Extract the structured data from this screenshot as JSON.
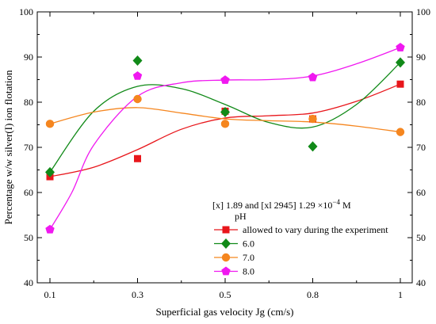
{
  "chart_data": {
    "type": "scatter",
    "xlabel": "Superficial gas velocity Jg (cm/s)",
    "ylabel": "Percentage w/w silver(I) ion flotation",
    "categories": [
      "0.1",
      "0.3",
      "0.5",
      "0.8",
      "1"
    ],
    "ylim": [
      40,
      100
    ],
    "yticks": [
      40,
      50,
      60,
      70,
      80,
      90,
      100
    ],
    "y_axis_mirrored_right": true,
    "grid": false,
    "legend": {
      "placement": "bottom-right",
      "line1": "[x] 1.89 and [xl 2945] 1.29 ×10",
      "line1_exp": "−4",
      "line1_unit": " M",
      "line2": "pH"
    },
    "series": [
      {
        "name": "allowed to vary during the experiment",
        "color": "#e8161b",
        "marker": "square",
        "values": [
          63.5,
          67.5,
          78.0,
          76.3,
          84.0
        ],
        "curve": [
          [
            0.0,
            63.5
          ],
          [
            0.5,
            65.6
          ],
          [
            1.0,
            69.5
          ],
          [
            1.5,
            74.0
          ],
          [
            2.0,
            76.5
          ],
          [
            2.5,
            77.0
          ],
          [
            3.0,
            77.6
          ],
          [
            3.5,
            80.2
          ],
          [
            4.0,
            84.0
          ]
        ]
      },
      {
        "name": "6.0",
        "color": "#118a18",
        "marker": "diamond",
        "values": [
          64.5,
          89.2,
          77.8,
          70.2,
          88.8
        ],
        "curve": [
          [
            0.0,
            64.5
          ],
          [
            0.5,
            78.0
          ],
          [
            1.0,
            83.5
          ],
          [
            1.5,
            83.0
          ],
          [
            2.0,
            79.5
          ],
          [
            2.5,
            75.5
          ],
          [
            3.0,
            74.5
          ],
          [
            3.5,
            79.5
          ],
          [
            4.0,
            88.8
          ]
        ]
      },
      {
        "name": "7.0",
        "color": "#f5861f",
        "marker": "circle",
        "values": [
          75.2,
          80.7,
          75.2,
          76.3,
          73.4
        ],
        "curve": [
          [
            0.0,
            75.2
          ],
          [
            0.5,
            77.8
          ],
          [
            1.0,
            78.8
          ],
          [
            1.5,
            77.6
          ],
          [
            2.0,
            76.3
          ],
          [
            2.5,
            75.9
          ],
          [
            3.0,
            75.6
          ],
          [
            3.5,
            74.7
          ],
          [
            4.0,
            73.4
          ]
        ]
      },
      {
        "name": "8.0",
        "color": "#f018f0",
        "marker": "pentagon",
        "values": [
          51.8,
          85.8,
          84.9,
          85.5,
          92.1
        ],
        "curve": [
          [
            0.0,
            51.8
          ],
          [
            0.25,
            60.0
          ],
          [
            0.5,
            70.5
          ],
          [
            1.0,
            81.3
          ],
          [
            1.5,
            84.3
          ],
          [
            2.0,
            84.9
          ],
          [
            2.5,
            85.0
          ],
          [
            3.0,
            85.8
          ],
          [
            3.5,
            88.5
          ],
          [
            4.0,
            92.1
          ]
        ]
      }
    ]
  }
}
